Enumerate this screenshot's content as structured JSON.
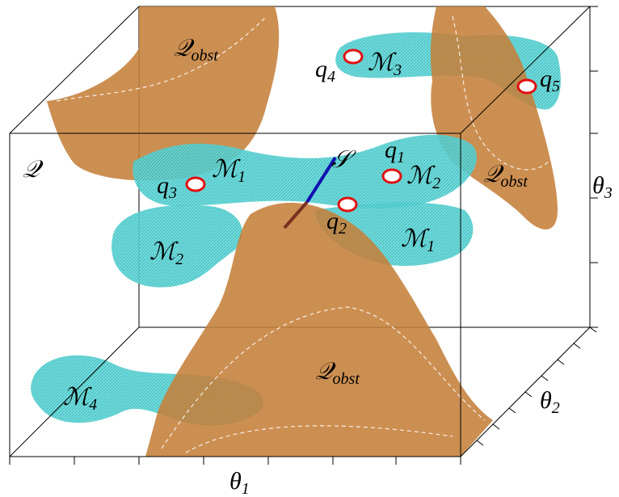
{
  "labels": [
    {
      "text": "𝒬",
      "sub": "obst"
    },
    {
      "text": "ℳ",
      "sub": "3"
    },
    {
      "text": "q",
      "sub": "4"
    },
    {
      "text": "q",
      "sub": "5"
    },
    {
      "text": "q",
      "sub": "1"
    },
    {
      "text": "ℳ",
      "sub": "2"
    },
    {
      "text": "𝒬",
      "sub": "obst"
    },
    {
      "text": "θ",
      "sub": "3"
    },
    {
      "text": "𝒬"
    },
    {
      "text": "q",
      "sub": "3"
    },
    {
      "text": "ℳ",
      "sub": "1"
    },
    {
      "text": "𝒮"
    },
    {
      "text": "q",
      "sub": "2"
    },
    {
      "text": "ℳ",
      "sub": "1"
    },
    {
      "text": "ℳ",
      "sub": "2"
    },
    {
      "text": "𝒬",
      "sub": "obst"
    },
    {
      "text": "ℳ",
      "sub": "4"
    },
    {
      "text": "θ",
      "sub": "2"
    },
    {
      "text": "θ",
      "sub": "1"
    }
  ]
}
